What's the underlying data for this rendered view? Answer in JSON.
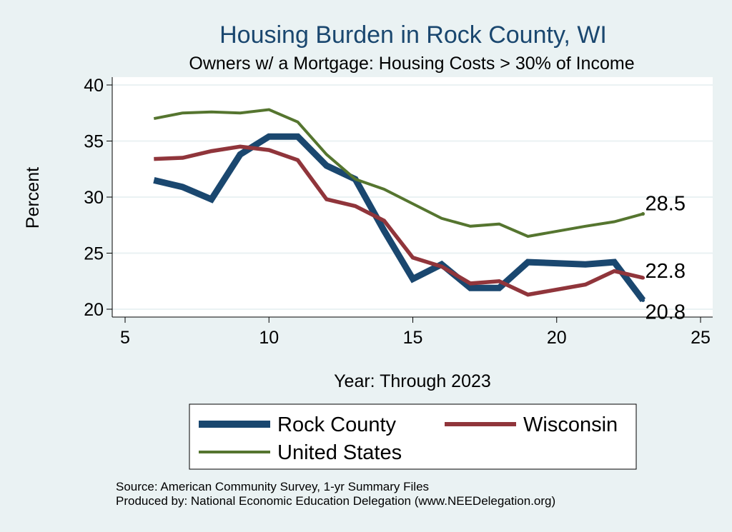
{
  "chart_data": {
    "type": "line",
    "title": "Housing Burden in Rock County, WI",
    "subtitle": "Owners w/ a Mortgage: Housing Costs > 30% of Income",
    "xlabel": "Year: Through 2023",
    "ylabel": "Percent",
    "xlim": [
      5,
      25
    ],
    "ylim": [
      19.3,
      40.7
    ],
    "xticks": [
      5,
      10,
      15,
      20,
      25
    ],
    "yticks": [
      20,
      25,
      30,
      35,
      40
    ],
    "grid": true,
    "legend_position": "bottom",
    "series": [
      {
        "name": "Rock County",
        "color": "#1a476f",
        "x": [
          6,
          7,
          8,
          9,
          10,
          11,
          12,
          13,
          14,
          15,
          16,
          17,
          18,
          19,
          21,
          22,
          23
        ],
        "y": [
          31.5,
          30.9,
          29.8,
          33.8,
          35.4,
          35.4,
          32.8,
          31.6,
          27.0,
          22.7,
          24.0,
          21.9,
          21.9,
          24.2,
          24.0,
          24.2,
          20.8
        ],
        "end_label": "20.8"
      },
      {
        "name": "Wisconsin",
        "color": "#90353b",
        "x": [
          6,
          7,
          8,
          9,
          10,
          11,
          12,
          13,
          14,
          15,
          16,
          17,
          18,
          19,
          21,
          22,
          23
        ],
        "y": [
          33.4,
          33.5,
          34.1,
          34.5,
          34.2,
          33.3,
          29.8,
          29.2,
          27.9,
          24.6,
          23.8,
          22.3,
          22.5,
          21.3,
          22.2,
          23.4,
          22.8
        ],
        "end_label": "22.8"
      },
      {
        "name": "United States",
        "color": "#55752f",
        "x": [
          6,
          7,
          8,
          9,
          10,
          11,
          12,
          13,
          14,
          15,
          16,
          17,
          18,
          19,
          21,
          22,
          23
        ],
        "y": [
          37.0,
          37.5,
          37.6,
          37.5,
          37.8,
          36.7,
          33.8,
          31.6,
          30.7,
          29.4,
          28.1,
          27.4,
          27.6,
          26.5,
          27.4,
          27.8,
          28.5
        ],
        "end_label": "28.5"
      }
    ]
  },
  "notes": {
    "source": "Source: American Community Survey, 1-yr Summary Files",
    "producer": "Produced by: National Economic Education Delegation (www.NEEDelegation.org)"
  }
}
